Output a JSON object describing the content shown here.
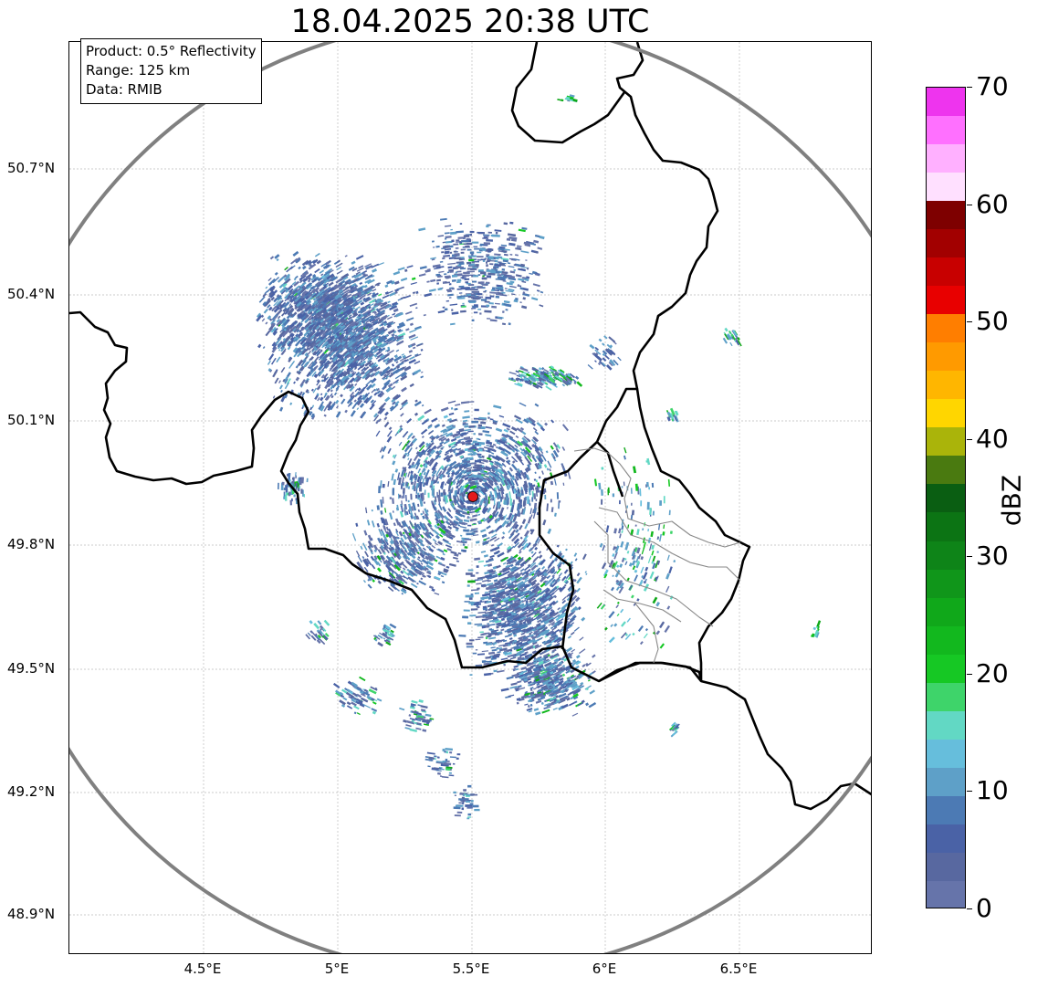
{
  "title": "18.04.2025 20:38 UTC",
  "info": {
    "product": "Product: 0.5° Reflectivity",
    "range": "Range: 125 km",
    "data": "Data: RMIB"
  },
  "axes": {
    "y_ticks": [
      "50.7°N",
      "50.4°N",
      "50.1°N",
      "49.8°N",
      "49.5°N",
      "49.2°N",
      "48.9°N"
    ],
    "x_ticks": [
      "4.5°E",
      "5°E",
      "5.5°E",
      "6°E",
      "6.5°E"
    ],
    "lon_range": [
      4.0,
      7.0
    ],
    "lat_range": [
      48.8,
      51.0
    ],
    "grid": true
  },
  "radar": {
    "site_color": "#e31a1c",
    "range_ring_color": "#808080",
    "border_color": "#000000",
    "subdivision_color": "#888888"
  },
  "colorbar": {
    "label": "dBZ",
    "tick_labels": [
      "0",
      "10",
      "20",
      "30",
      "40",
      "50",
      "60",
      "70"
    ],
    "range": [
      0,
      70
    ],
    "step": 2.5,
    "colors": [
      "#6674aa",
      "#5868a0",
      "#4a62a6",
      "#4c7ab4",
      "#5ea0c8",
      "#66bedc",
      "#62d8c4",
      "#3ed46a",
      "#16c824",
      "#12b81e",
      "#10a81a",
      "#10961a",
      "#0e8418",
      "#0c7414",
      "#0a5e12",
      "#4a7a10",
      "#aab40a",
      "#ffd600",
      "#ffb600",
      "#ff9a00",
      "#ff7e00",
      "#e80000",
      "#c80000",
      "#a20000",
      "#7e0000",
      "#ffe0ff",
      "#ffb0ff",
      "#ff70ff",
      "#ee34ee"
    ]
  }
}
